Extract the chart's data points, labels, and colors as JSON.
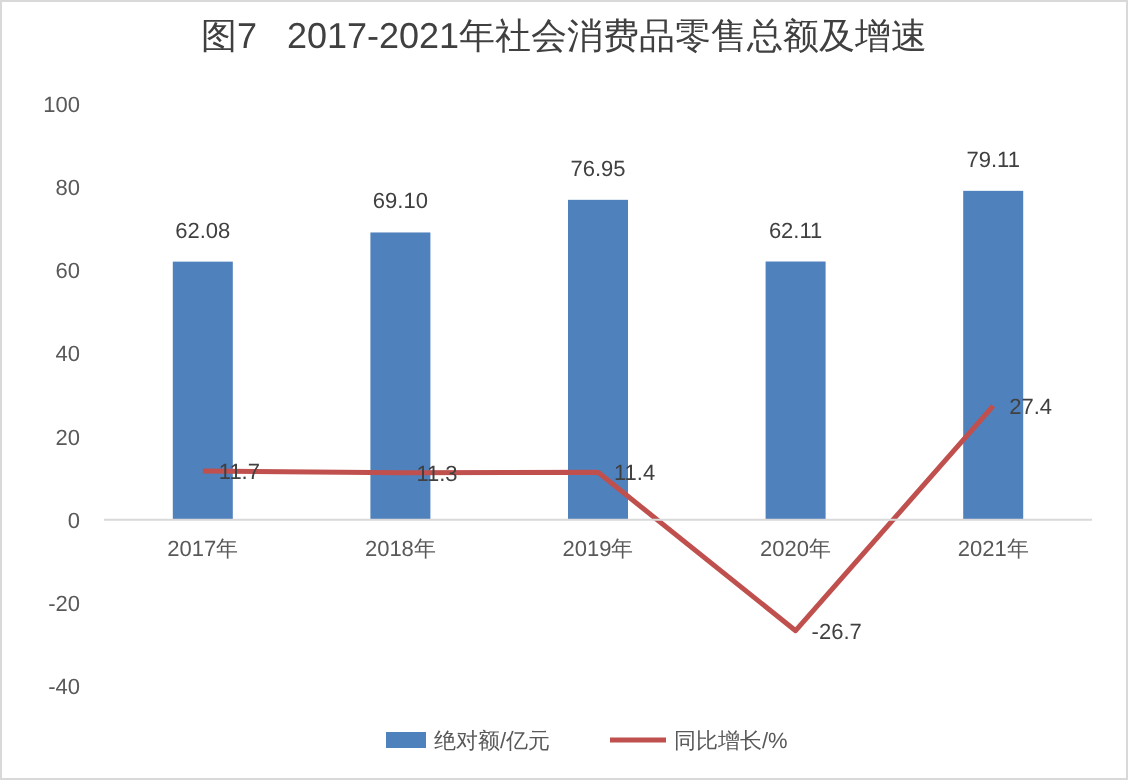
{
  "chart_data": {
    "type": "bar",
    "title": "图7   2017-2021年社会消费品零售总额及增速",
    "categories": [
      "2017年",
      "2018年",
      "2019年",
      "2020年",
      "2021年"
    ],
    "series": [
      {
        "name": "绝对额/亿元",
        "color": "#4f81bd",
        "values": [
          62.08,
          69.1,
          76.95,
          62.11,
          79.11
        ],
        "value_labels": [
          "62.08",
          "69.10",
          "76.95",
          "62.11",
          "79.11"
        ]
      },
      {
        "name": "同比增长/%",
        "type": "line",
        "color": "#c0504d",
        "values": [
          11.7,
          11.3,
          11.4,
          -26.7,
          27.4
        ]
      }
    ],
    "ylim": [
      -40,
      100
    ],
    "yticks": [
      -40,
      -20,
      0,
      20,
      40,
      60,
      80,
      100
    ],
    "data_labels": true,
    "legend": "bottom",
    "grid": false,
    "marker": "none"
  }
}
